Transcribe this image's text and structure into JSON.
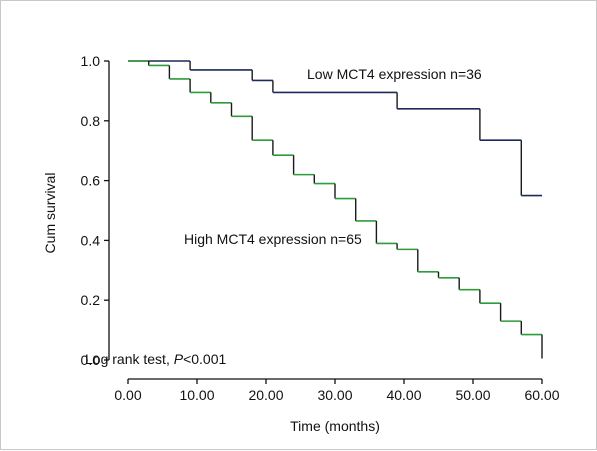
{
  "chart_data": {
    "type": "line",
    "xlabel": "Time (months)",
    "ylabel": "Cum survival",
    "xlim": [
      0,
      60
    ],
    "ylim": [
      0,
      1.0
    ],
    "x_ticks": [
      "0.00",
      "10.00",
      "20.00",
      "30.00",
      "40.00",
      "50.00",
      "60.00"
    ],
    "y_ticks": [
      "0.0",
      "0.2",
      "0.4",
      "0.6",
      "0.8",
      "1.0"
    ],
    "grid": false,
    "legend": "none",
    "series": [
      {
        "name": "Low MCT4 expression n=36",
        "color": "#1c2a5c",
        "step": true,
        "x": [
          0,
          9,
          18,
          21,
          39,
          51,
          57,
          60
        ],
        "y": [
          1.0,
          0.97,
          0.935,
          0.895,
          0.84,
          0.735,
          0.55,
          0.55
        ]
      },
      {
        "name": "High MCT4 expression n=65",
        "color": "#2e9c3a",
        "step": true,
        "x": [
          0,
          3,
          6,
          9,
          12,
          15,
          18,
          21,
          24,
          27,
          30,
          33,
          36,
          39,
          42,
          45,
          48,
          51,
          54,
          57,
          60
        ],
        "y": [
          1.0,
          0.985,
          0.94,
          0.895,
          0.86,
          0.815,
          0.735,
          0.685,
          0.62,
          0.59,
          0.54,
          0.465,
          0.39,
          0.37,
          0.295,
          0.275,
          0.235,
          0.19,
          0.13,
          0.085,
          0.005
        ]
      }
    ],
    "annotations": {
      "low_label": "Low MCT4 expression n=36",
      "high_label": "High MCT4 expression n=65",
      "test_label_prefix": "Log rank test, ",
      "test_label_p": "P",
      "test_label_value": "<0.001"
    }
  }
}
